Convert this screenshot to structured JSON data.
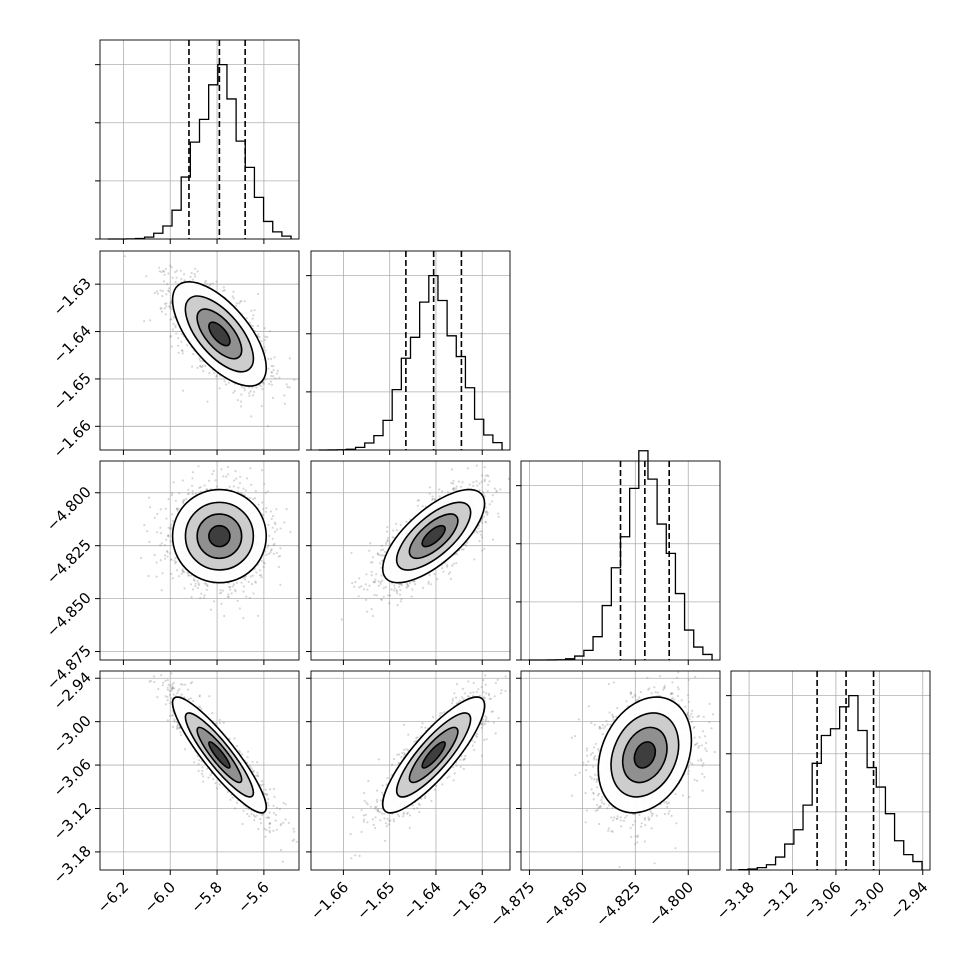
{
  "chart_data": {
    "type": "corner",
    "parameters": [
      {
        "xlim": [
          -6.3,
          -5.45
        ],
        "ylim": [
          -1.665,
          -1.623
        ],
        "ticks": [
          -6.2,
          -6.0,
          -5.8,
          -5.6
        ],
        "tick_labels": [
          "−6.2",
          "−6.0",
          "−5.8",
          "−5.6"
        ],
        "quantiles": [
          -5.92,
          -5.79,
          -5.68
        ],
        "mean": -5.79,
        "std": 0.1,
        "hist_max": 3000
      },
      {
        "xlim": [
          -1.667,
          -1.624
        ],
        "ylim": [
          -1.665,
          -1.623
        ],
        "ticks": [
          -1.66,
          -1.65,
          -1.64,
          -1.63
        ],
        "tick_labels": [
          "−1.66",
          "−1.65",
          "−1.64",
          "−1.63"
        ],
        "quantiles": [
          -1.6465,
          -1.6405,
          -1.6345
        ],
        "mean": -1.6405,
        "std": 0.0055,
        "hist_max": 3000
      },
      {
        "xlim": [
          -4.879,
          -4.785
        ],
        "ylim": [
          -4.879,
          -4.785
        ],
        "ticks": [
          -4.875,
          -4.85,
          -4.825,
          -4.8
        ],
        "tick_labels": [
          "−4.875",
          "−4.850",
          "−4.825",
          "−4.800"
        ],
        "quantiles": [
          -4.832,
          -4.8205,
          -4.809
        ],
        "mean": -4.8205,
        "std": 0.011,
        "hist_max": 3600
      },
      {
        "xlim": [
          -3.205,
          -2.93
        ],
        "ylim": [
          -3.205,
          -2.93
        ],
        "ticks": [
          -3.18,
          -3.12,
          -3.06,
          -3.0,
          -2.94
        ],
        "tick_labels": [
          "−3.18",
          "−3.12",
          "−3.06",
          "−3.00",
          "−2.94"
        ],
        "quantiles": [
          -3.086,
          -3.046,
          -3.008
        ],
        "mean": -3.046,
        "std": 0.04,
        "hist_max": 3000
      }
    ],
    "correlations": [
      [
        1.0,
        -0.65,
        0.0,
        -0.9
      ],
      [
        -0.65,
        1.0,
        0.7,
        0.85
      ],
      [
        0.0,
        0.7,
        1.0,
        0.25
      ],
      [
        -0.9,
        0.85,
        0.25,
        1.0
      ]
    ],
    "hist_bins": 20,
    "hist_y_ticks": [
      0,
      1000,
      2000,
      3000
    ],
    "grid": true,
    "colors": {
      "samples": "#7f7f7f",
      "lines": "#000000",
      "grid": "#b0b0b0",
      "fill": "#ffffff"
    }
  }
}
